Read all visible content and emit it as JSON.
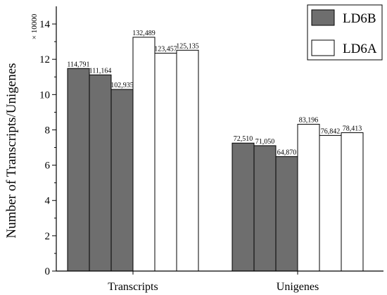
{
  "chart_data": {
    "type": "bar",
    "categories": [
      "Transcripts",
      "Unigenes"
    ],
    "ylabel": "Number of Transcripts/Unigenes",
    "y_multiplier": "× 10000",
    "ylim": [
      0,
      15
    ],
    "yticks": [
      0,
      2,
      4,
      6,
      8,
      10,
      12,
      14
    ],
    "grid": false,
    "legend_position": "top-right",
    "series": [
      {
        "name": "LD6B",
        "color": "#6e6e6e",
        "values": [
          [
            11.4791,
            11.1164,
            10.2935
          ],
          [
            7.251,
            7.105,
            6.487
          ]
        ],
        "labels": [
          [
            "114,791",
            "111,164",
            "102,935"
          ],
          [
            "72,510",
            "71,050",
            "64,870"
          ]
        ]
      },
      {
        "name": "LD6A",
        "color": "#ffffff",
        "values": [
          [
            13.2489,
            12.3457,
            12.5135
          ],
          [
            8.3196,
            7.6842,
            7.8413
          ]
        ],
        "labels": [
          [
            "132,489",
            "123,457",
            "125,135"
          ],
          [
            "83,196",
            "76,842",
            "78,413"
          ]
        ]
      }
    ]
  }
}
